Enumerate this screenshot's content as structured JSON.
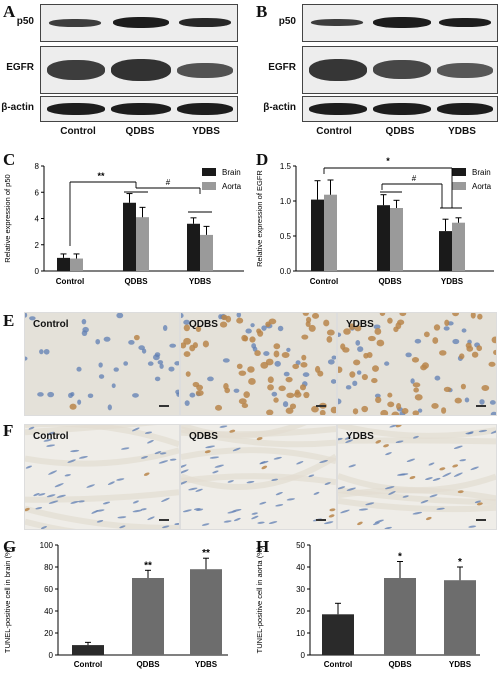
{
  "panels": {
    "a": "A",
    "b": "B",
    "c": "C",
    "d": "D",
    "e": "E",
    "f": "F",
    "g": "G",
    "h": "H"
  },
  "blot_a": {
    "rows": [
      "p50",
      "EGFR",
      "β-actin"
    ],
    "lanes": [
      "Control",
      "QDBS",
      "YDBS"
    ]
  },
  "blot_b": {
    "rows": [
      "p50",
      "EGFR",
      "β-actin"
    ],
    "lanes": [
      "Control",
      "QDBS",
      "YDBS"
    ]
  },
  "micro_e": {
    "labels": [
      "Control",
      "QDBS",
      "YDBS"
    ]
  },
  "micro_f": {
    "labels": [
      "Control",
      "QDBS",
      "YDBS"
    ]
  },
  "colors": {
    "brain": "#1a1a1a",
    "aorta": "#9a9a9a",
    "tunel_bar": "#2a2a2a",
    "tunel_bar2": "#6d6d6d",
    "brain_bg": "#e4e1d9",
    "aorta_bg": "#efede8",
    "dab": "#b8854a",
    "nuclei": "#5f7db3"
  },
  "chart_data": [
    {
      "type": "bar",
      "ylabel": "Relative expression of p50",
      "categories": [
        "Control",
        "QDBS",
        "YDBS"
      ],
      "ylim": [
        0,
        8
      ],
      "yticks": [
        "0",
        "2",
        "4",
        "6",
        "8"
      ],
      "series": [
        {
          "name": "Brain",
          "values": [
            1.0,
            5.2,
            3.6
          ],
          "errors": [
            0.3,
            0.7,
            0.45
          ]
        },
        {
          "name": "Aorta",
          "values": [
            0.95,
            4.1,
            2.75
          ],
          "errors": [
            0.35,
            0.75,
            0.65
          ]
        }
      ],
      "annotations": [
        "**",
        "#"
      ],
      "legend": "top-right"
    },
    {
      "type": "bar",
      "ylabel": "Relative expression of EGFR",
      "categories": [
        "Control",
        "QDBS",
        "YDBS"
      ],
      "ylim": [
        0,
        1.5
      ],
      "yticks": [
        "0.0",
        "0.5",
        "1.0",
        "1.5"
      ],
      "series": [
        {
          "name": "Brain",
          "values": [
            1.02,
            0.94,
            0.57
          ],
          "errors": [
            0.27,
            0.15,
            0.17
          ]
        },
        {
          "name": "Aorta",
          "values": [
            1.09,
            0.9,
            0.69
          ],
          "errors": [
            0.21,
            0.11,
            0.07
          ]
        }
      ],
      "annotations": [
        "*",
        "#"
      ],
      "legend": "top-right"
    },
    {
      "type": "bar",
      "ylabel": "TUNEL-positive cell in brain (%)",
      "categories": [
        "Control",
        "QDBS",
        "YDBS"
      ],
      "ylim": [
        0,
        100
      ],
      "yticks": [
        "0",
        "20",
        "40",
        "60",
        "80",
        "100"
      ],
      "values": [
        9,
        70,
        78
      ],
      "errors": [
        2.5,
        7,
        10
      ],
      "annotations": [
        "",
        "**",
        "**"
      ]
    },
    {
      "type": "bar",
      "ylabel": "TUNEL-positive cell in aorta (%)",
      "categories": [
        "Control",
        "QDBS",
        "YDBS"
      ],
      "ylim": [
        0,
        50
      ],
      "yticks": [
        "0",
        "10",
        "20",
        "30",
        "40",
        "50"
      ],
      "values": [
        18.5,
        35,
        34
      ],
      "errors": [
        5,
        7.5,
        6
      ],
      "annotations": [
        "",
        "*",
        "*"
      ]
    }
  ]
}
